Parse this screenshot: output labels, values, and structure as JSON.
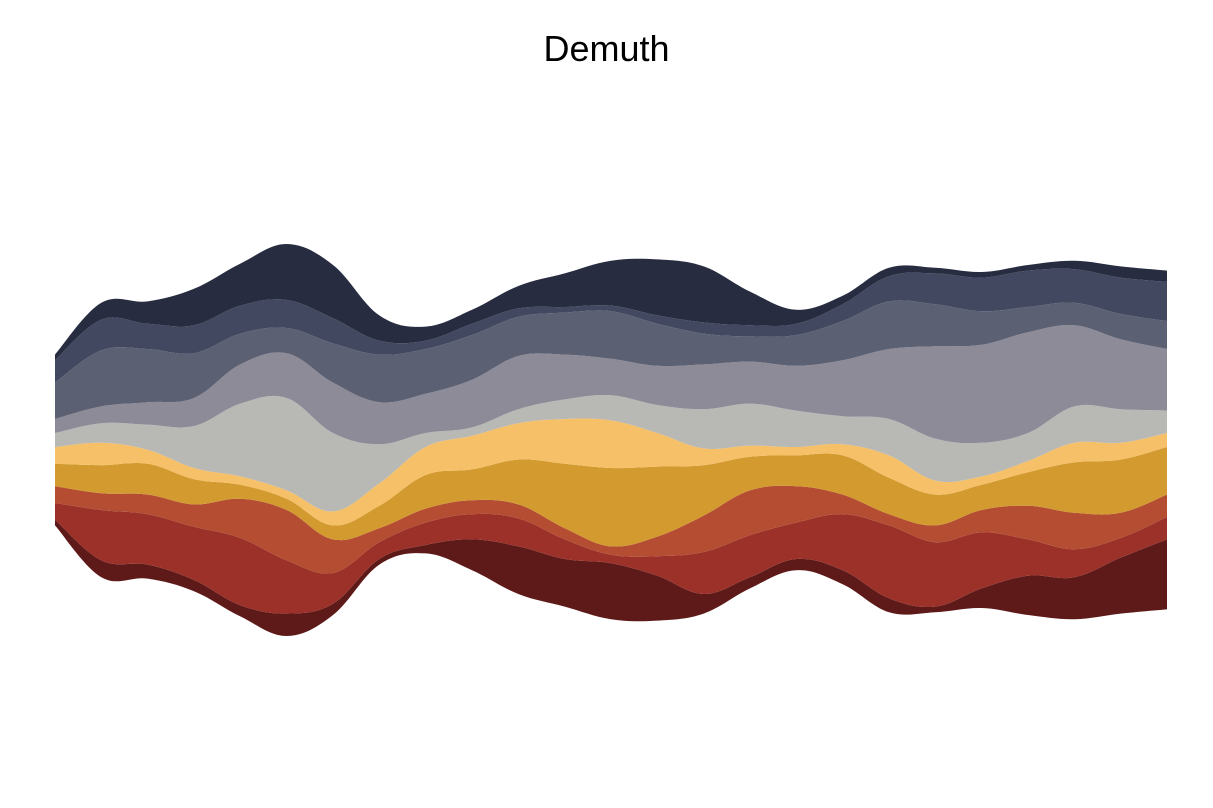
{
  "title": "Demuth",
  "chart_data": {
    "type": "area",
    "subtype": "streamgraph",
    "baseline": "symmetric",
    "title": "Demuth",
    "xlabel": "",
    "ylabel": "",
    "axes_visible": false,
    "grid": false,
    "legend": "none",
    "x": [
      0,
      1,
      2,
      3,
      4,
      5,
      6,
      7,
      8,
      9,
      10,
      11,
      12,
      13,
      14,
      15,
      16,
      17,
      18,
      19,
      20,
      21,
      22,
      23,
      24
    ],
    "series": [
      {
        "color": "#5e1a19",
        "values": [
          0.2,
          0.6,
          0.5,
          0.4,
          0.4,
          0.8,
          0.4,
          0.2,
          0.3,
          1.1,
          1.7,
          1.7,
          2.0,
          1.6,
          0.7,
          0.4,
          0.4,
          0.5,
          0.5,
          0.2,
          0.7,
          1.4,
          1.5,
          2.0,
          2.5
        ]
      },
      {
        "color": "#9b3129",
        "values": [
          0.6,
          1.8,
          1.8,
          1.9,
          2.4,
          1.9,
          1.1,
          0.6,
          0.8,
          0.9,
          1.0,
          0.7,
          0.3,
          0.7,
          1.5,
          1.5,
          1.3,
          2.0,
          2.6,
          2.3,
          2.0,
          1.3,
          1.0,
          0.7,
          0.8
        ]
      },
      {
        "color": "#b44d32",
        "values": [
          0.6,
          0.6,
          0.7,
          0.8,
          1.4,
          1.8,
          1.2,
          0.5,
          0.5,
          0.5,
          0.5,
          0.4,
          0.3,
          0.7,
          1.3,
          1.6,
          1.3,
          0.7,
          0.4,
          0.6,
          0.8,
          1.2,
          1.3,
          0.9,
          0.8
        ]
      },
      {
        "color": "#d29a2f",
        "values": [
          0.8,
          1.0,
          1.1,
          0.9,
          0.5,
          0.4,
          0.5,
          0.8,
          1.2,
          1.1,
          1.6,
          2.3,
          2.8,
          2.5,
          1.8,
          1.2,
          1.1,
          1.4,
          1.3,
          1.1,
          0.9,
          1.2,
          1.8,
          1.9,
          1.7
        ]
      },
      {
        "color": "#f5c068",
        "values": [
          0.6,
          0.8,
          0.5,
          0.4,
          0.3,
          0.3,
          0.5,
          0.8,
          1.0,
          1.2,
          1.3,
          1.6,
          1.7,
          1.2,
          0.6,
          0.4,
          0.3,
          0.4,
          0.8,
          0.5,
          0.3,
          0.4,
          0.7,
          0.6,
          0.5
        ]
      },
      {
        "color": "#b8b8b5",
        "values": [
          0.5,
          0.7,
          0.9,
          1.5,
          2.6,
          3.3,
          2.8,
          1.4,
          0.5,
          0.3,
          0.5,
          0.7,
          0.9,
          1.0,
          1.4,
          1.5,
          1.3,
          1.0,
          1.3,
          1.5,
          1.2,
          1.0,
          1.3,
          1.2,
          0.8
        ]
      },
      {
        "color": "#8c8b97",
        "values": [
          0.5,
          0.6,
          0.8,
          1.0,
          1.4,
          1.6,
          1.8,
          1.5,
          1.4,
          1.7,
          1.9,
          1.6,
          1.3,
          1.4,
          1.6,
          1.5,
          1.6,
          2.0,
          2.5,
          3.3,
          3.5,
          3.6,
          2.9,
          2.5,
          2.2
        ]
      },
      {
        "color": "#5c6073",
        "values": [
          1.3,
          2.0,
          1.9,
          1.6,
          1.1,
          0.9,
          1.4,
          1.7,
          1.6,
          1.6,
          1.4,
          1.5,
          1.7,
          1.5,
          1.1,
          0.9,
          1.1,
          1.4,
          1.7,
          1.5,
          1.2,
          0.9,
          0.8,
          0.9,
          1.0
        ]
      },
      {
        "color": "#434861",
        "values": [
          0.8,
          1.1,
          0.9,
          1.0,
          1.0,
          1.0,
          0.9,
          0.5,
          0.3,
          0.4,
          0.3,
          0.2,
          0.2,
          0.3,
          0.4,
          0.4,
          0.4,
          0.6,
          0.9,
          1.1,
          1.2,
          1.3,
          1.2,
          1.3,
          1.4
        ]
      },
      {
        "color": "#272c40",
        "values": [
          0.2,
          0.6,
          0.8,
          1.3,
          1.5,
          2.0,
          1.9,
          0.9,
          0.5,
          0.5,
          0.8,
          1.2,
          1.6,
          2.0,
          2.0,
          1.2,
          0.5,
          0.3,
          0.3,
          0.2,
          0.2,
          0.2,
          0.3,
          0.4,
          0.4
        ]
      }
    ]
  }
}
